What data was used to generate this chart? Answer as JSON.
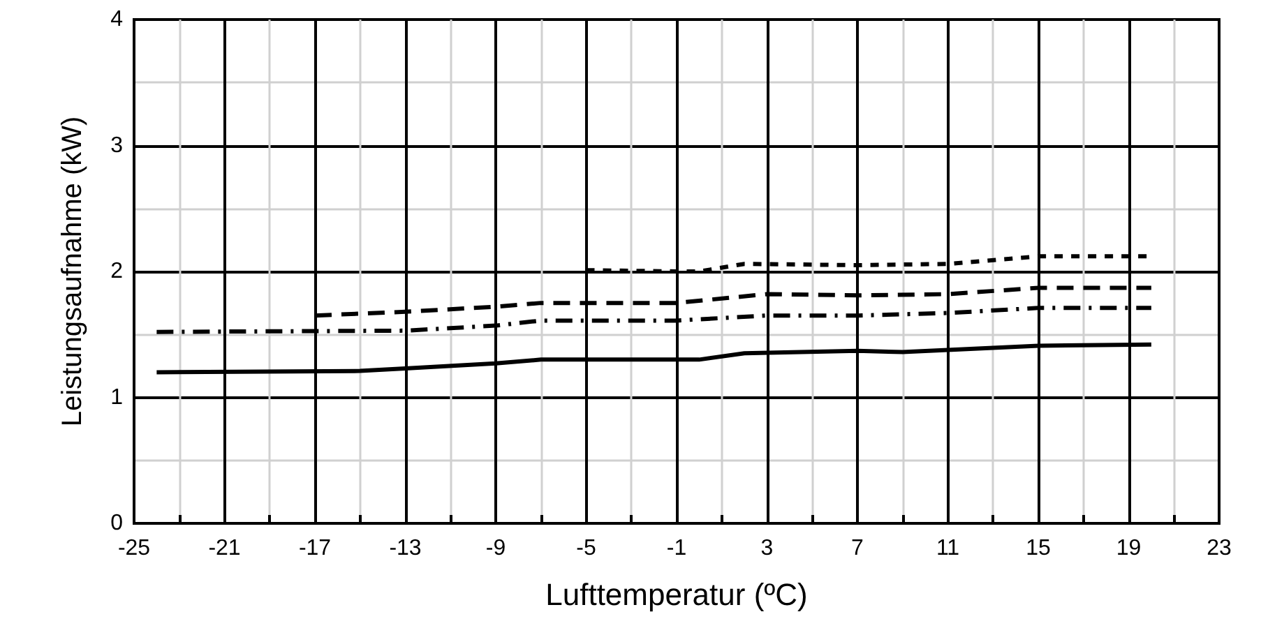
{
  "chart_data": {
    "type": "line",
    "xlabel": "Lufttemperatur (ºC)",
    "ylabel": "Leistungsaufnahme (kW)",
    "xlim": [
      -25,
      23
    ],
    "xticks": [
      -25,
      -21,
      -17,
      -13,
      -9,
      -5,
      -1,
      3,
      7,
      11,
      15,
      19,
      23
    ],
    "ylim": [
      0,
      4
    ],
    "yticks": [
      0,
      1,
      2,
      3,
      4
    ],
    "grid": true,
    "marker": "none",
    "series": [
      {
        "color": "#000000",
        "line_style": "solid",
        "x": [
          -24,
          -15,
          -13,
          -9,
          -7,
          -1,
          0,
          2,
          7,
          9,
          15,
          20
        ],
        "values": [
          1.2,
          1.21,
          1.23,
          1.27,
          1.3,
          1.3,
          1.3,
          1.35,
          1.37,
          1.36,
          1.41,
          1.42
        ]
      },
      {
        "color": "#000000",
        "line_style": "dashdot",
        "x": [
          -24,
          -13,
          -9,
          -7,
          -1,
          3,
          7,
          11,
          15,
          20
        ],
        "values": [
          1.52,
          1.53,
          1.57,
          1.61,
          1.61,
          1.65,
          1.65,
          1.67,
          1.71,
          1.71
        ]
      },
      {
        "color": "#000000",
        "line_style": "dashed",
        "x": [
          -17,
          -13,
          -9,
          -7,
          -1,
          3,
          7,
          11,
          15,
          20
        ],
        "values": [
          1.65,
          1.68,
          1.72,
          1.75,
          1.75,
          1.82,
          1.81,
          1.82,
          1.87,
          1.87
        ]
      },
      {
        "color": "#000000",
        "line_style": "dotted",
        "x": [
          -5,
          -1,
          0,
          2,
          7,
          11,
          15,
          20
        ],
        "values": [
          2.01,
          2.0,
          2.0,
          2.06,
          2.05,
          2.06,
          2.12,
          2.12
        ]
      }
    ]
  }
}
